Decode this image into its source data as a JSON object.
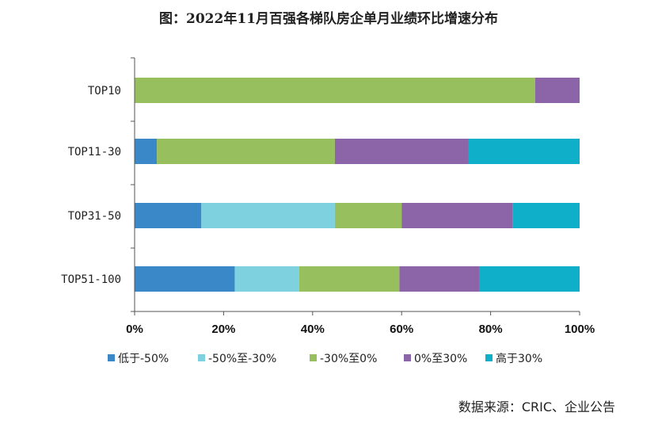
{
  "chart_data": {
    "type": "bar",
    "orientation": "horizontal",
    "stacked": true,
    "title": "图：2022年11月百强各梯队房企单月业绩环比增速分布",
    "categories": [
      "TOP10",
      "TOP11-30",
      "TOP31-50",
      "TOP51-100"
    ],
    "series": [
      {
        "name": "低于-50%",
        "color": "#3A88C8",
        "values": [
          0,
          5,
          15,
          22.5
        ]
      },
      {
        "name": "-50%至-30%",
        "color": "#7ED2E0",
        "values": [
          0,
          0,
          30,
          14.5
        ]
      },
      {
        "name": "-30%至0%",
        "color": "#97BF5E",
        "values": [
          90,
          40,
          15,
          22.5
        ]
      },
      {
        "name": "0%至30%",
        "color": "#8C65A8",
        "values": [
          10,
          30,
          25,
          18
        ]
      },
      {
        "name": "高于30%",
        "color": "#10AFC9",
        "values": [
          0,
          25,
          15,
          22.5
        ]
      }
    ],
    "xlim": [
      0,
      100
    ],
    "xticks": [
      "0%",
      "20%",
      "40%",
      "60%",
      "80%",
      "100%"
    ],
    "grid": false,
    "legend_position": "bottom"
  },
  "source": "数据来源：CRIC、企业公告"
}
